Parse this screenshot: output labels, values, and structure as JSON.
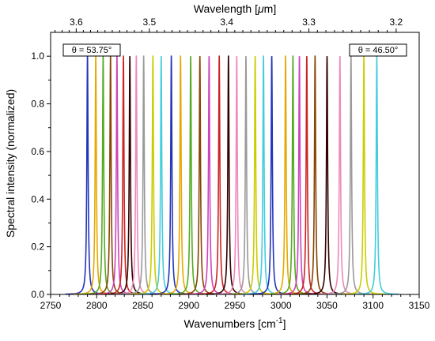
{
  "chart_data": {
    "type": "line",
    "xlabel": "Wavenumbers [cm",
    "xlabel_sup": "-1",
    "xlabel_end": "]",
    "ylabel": "Spectral intensity (normalized)",
    "top_xlabel_pre": "Wavelength [",
    "top_xlabel_mu": "μ",
    "top_xlabel_post": "m]",
    "xlim": [
      2750,
      3150
    ],
    "ylim": [
      0,
      1.1
    ],
    "x_ticks": [
      "2750",
      "2800",
      "2850",
      "2900",
      "2950",
      "3000",
      "3050",
      "3100",
      "3150"
    ],
    "y_ticks": [
      "0.0",
      "0.2",
      "0.4",
      "0.6",
      "0.8",
      "1.0"
    ],
    "top_ticks": [
      "3.6",
      "3.5",
      "3.4",
      "3.3",
      "3.2"
    ],
    "grid": false,
    "annotations": [
      "θ = 53.75°",
      "θ = 46.50°"
    ],
    "linewidth_cm1": 1.6,
    "series": [
      {
        "center": 2790,
        "color": "#2233bb"
      },
      {
        "center": 2799,
        "color": "#e6a800"
      },
      {
        "center": 2807,
        "color": "#55aa22"
      },
      {
        "center": 2815,
        "color": "#884400"
      },
      {
        "center": 2822,
        "color": "#cc44bb"
      },
      {
        "center": 2829,
        "color": "#cc2222"
      },
      {
        "center": 2836,
        "color": "#330000"
      },
      {
        "center": 2843,
        "color": "#ee88bb"
      },
      {
        "center": 2851,
        "color": "#999999"
      },
      {
        "center": 2861,
        "color": "#cccc00"
      },
      {
        "center": 2870,
        "color": "#44ccdd"
      },
      {
        "center": 2881,
        "color": "#2233bb"
      },
      {
        "center": 2891,
        "color": "#e6a800"
      },
      {
        "center": 2902,
        "color": "#55aa22"
      },
      {
        "center": 2912,
        "color": "#884400"
      },
      {
        "center": 2922,
        "color": "#cc44bb"
      },
      {
        "center": 2933,
        "color": "#cc2222"
      },
      {
        "center": 2943,
        "color": "#330000"
      },
      {
        "center": 2952,
        "color": "#ee88bb"
      },
      {
        "center": 2962,
        "color": "#999999"
      },
      {
        "center": 2972,
        "color": "#cccc00"
      },
      {
        "center": 2981,
        "color": "#44ccdd"
      },
      {
        "center": 2990,
        "color": "#2233bb"
      },
      {
        "center": 3005,
        "color": "#e6a800"
      },
      {
        "center": 3013,
        "color": "#55aa22"
      },
      {
        "center": 3020,
        "color": "#cc44bb"
      },
      {
        "center": 3028,
        "color": "#cc2222"
      },
      {
        "center": 3037,
        "color": "#884400"
      },
      {
        "center": 3050,
        "color": "#330000"
      },
      {
        "center": 3064,
        "color": "#ee88bb"
      },
      {
        "center": 3076,
        "color": "#999999"
      },
      {
        "center": 3090,
        "color": "#cccc00"
      },
      {
        "center": 3104,
        "color": "#44ccdd"
      }
    ]
  }
}
